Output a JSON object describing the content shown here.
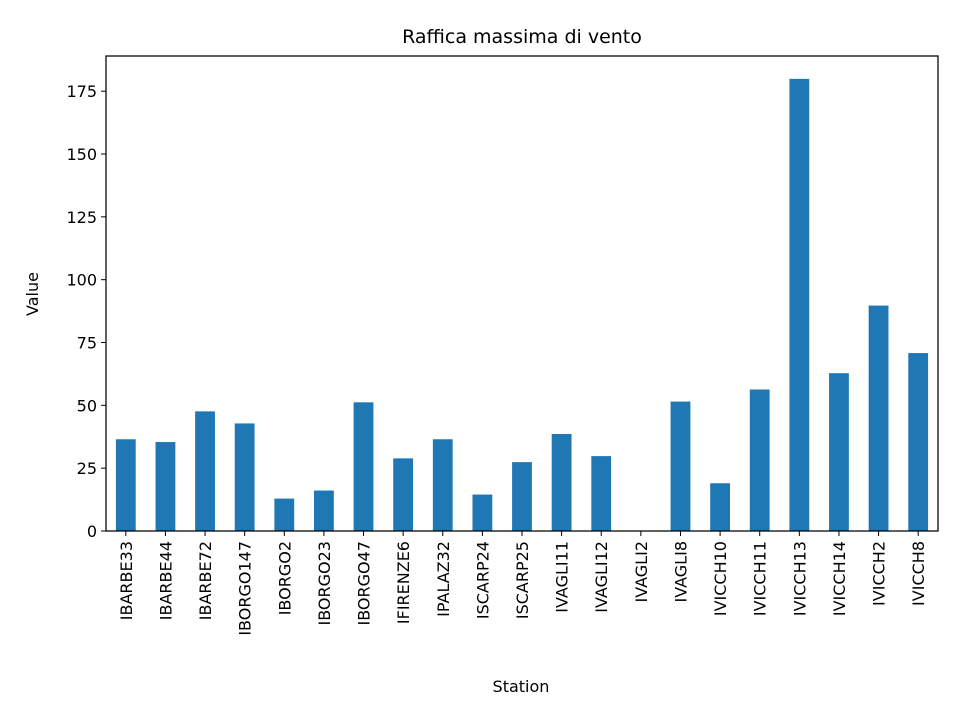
{
  "chart_data": {
    "type": "bar",
    "title": "Raffica massima di vento",
    "xlabel": "Station",
    "ylabel": "Value",
    "categories": [
      "IBARBE33",
      "IBARBE44",
      "IBARBE72",
      "IBORGO147",
      "IBORGO2",
      "IBORGO23",
      "IBORGO47",
      "IFIRENZE6",
      "IPALAZ32",
      "ISCARP24",
      "ISCARP25",
      "IVAGLI11",
      "IVAGLI12",
      "IVAGLI2",
      "IVAGLI8",
      "IVICCH10",
      "IVICCH11",
      "IVICCH13",
      "IVICCH14",
      "IVICCH2",
      "IVICCH8"
    ],
    "values": [
      36.5,
      35.4,
      47.6,
      42.8,
      12.9,
      16.1,
      51.2,
      28.9,
      36.5,
      14.5,
      27.4,
      38.6,
      29.8,
      0,
      51.5,
      19.0,
      56.3,
      179.9,
      62.8,
      89.7,
      70.8
    ],
    "ylim": [
      0,
      189
    ],
    "yticks": [
      0,
      25,
      50,
      75,
      100,
      125,
      150,
      175
    ],
    "bar_color": "#1f77b4",
    "grid": false,
    "legend": "none"
  }
}
